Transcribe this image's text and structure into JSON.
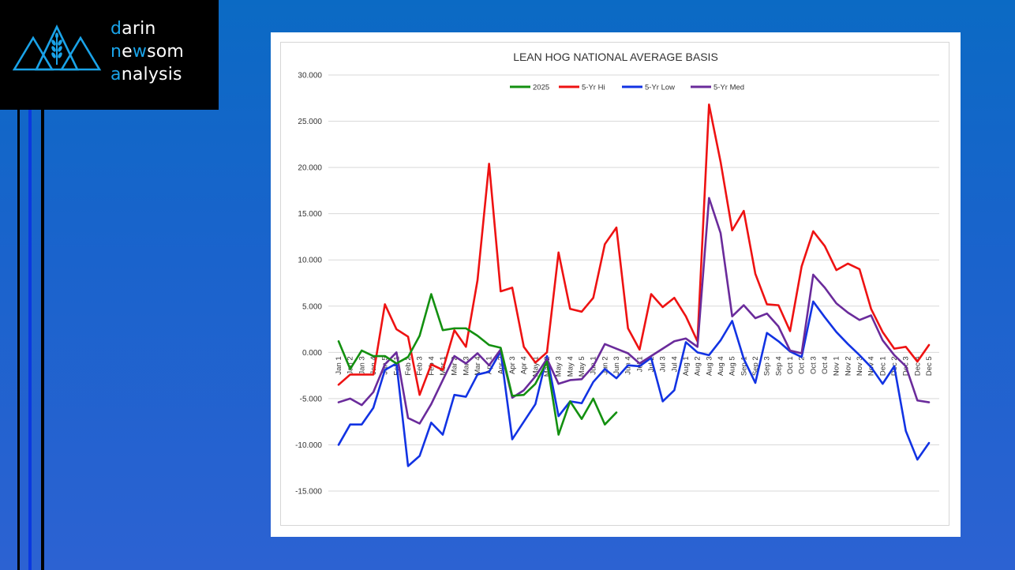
{
  "logo": {
    "line1_first": "d",
    "line1_rest": "arin",
    "line2_a": "n",
    "line2_b": "e",
    "line2_c": "w",
    "line2_d": "som",
    "line3_first": "a",
    "line3_rest": "nalysis"
  },
  "colors": {
    "background": "#1a63cc",
    "logo_accent": "#1aa3e8"
  },
  "chart_data": {
    "type": "line",
    "title": "LEAN HOG NATIONAL AVERAGE BASIS",
    "xlabel": "",
    "ylabel": "",
    "ylim": [
      -15,
      30
    ],
    "y_ticks": [
      "30.000",
      "25.000",
      "20.000",
      "15.000",
      "10.000",
      "5.000",
      "0.000",
      "-5.000",
      "-10.000",
      "-15.000"
    ],
    "y_tick_values": [
      30,
      25,
      20,
      15,
      10,
      5,
      0,
      -5,
      -10,
      -15
    ],
    "grid": true,
    "legend_position": "top",
    "categories": [
      "Jan 1",
      "Jan 2",
      "Jan 3",
      "Jan 4",
      "Jan 5",
      "Feb 1",
      "Feb 2",
      "Feb 3",
      "Feb 4",
      "Mar 1",
      "Mar 2",
      "Mar 3",
      "Mar 4",
      "Apr 1",
      "Apr 2",
      "Apr 3",
      "Apr 4",
      "May 1",
      "May 2",
      "May 3",
      "May 4",
      "May 5",
      "Jun 1",
      "Jun 2",
      "Jun 3",
      "Jun 4",
      "Jul 1",
      "Jul 2",
      "Jul 3",
      "Jul 4",
      "Aug 1",
      "Aug 2",
      "Aug 3",
      "Aug 4",
      "Aug 5",
      "Sep 1",
      "Sep 2",
      "Sep 3",
      "Sep 4",
      "Oct 1",
      "Oct 2",
      "Oct 3",
      "Oct 4",
      "Nov 1",
      "Nov 2",
      "Nov 3",
      "Nov 4",
      "Dec 1",
      "Dec 2",
      "Dec 3",
      "Dec 4",
      "Dec 5"
    ],
    "series": [
      {
        "name": "2025",
        "color": "#139010",
        "values": [
          1.2,
          -1.8,
          0.2,
          -0.4,
          -0.4,
          -1.2,
          -0.5,
          1.8,
          6.3,
          2.4,
          2.6,
          2.6,
          1.8,
          0.8,
          0.5,
          -4.7,
          -4.6,
          -3.4,
          -1.0,
          -8.9,
          -5.3,
          -7.2,
          -5.0,
          -7.8,
          -6.5,
          null,
          null,
          null,
          null,
          null,
          null,
          null,
          null,
          null,
          null,
          null,
          null,
          null,
          null,
          null,
          null,
          null,
          null,
          null,
          null,
          null,
          null,
          null,
          null,
          null,
          null,
          null
        ]
      },
      {
        "name": "5-Yr Hi",
        "color": "#ee1212",
        "values": [
          -3.5,
          -2.4,
          -2.4,
          -2.4,
          5.2,
          2.5,
          1.7,
          -4.6,
          -1.3,
          -1.9,
          2.4,
          0.6,
          7.8,
          20.4,
          6.6,
          7.0,
          0.6,
          -1.1,
          0.0,
          10.8,
          4.7,
          4.4,
          5.9,
          11.7,
          13.5,
          2.6,
          0.3,
          6.3,
          4.9,
          5.9,
          3.9,
          1.2,
          26.8,
          20.6,
          13.2,
          15.3,
          8.5,
          5.2,
          5.1,
          2.3,
          9.3,
          13.1,
          11.5,
          8.9,
          9.6,
          9.0,
          4.7,
          2.2,
          0.4,
          0.6,
          -1.0,
          0.8
        ]
      },
      {
        "name": "5-Yr Low",
        "color": "#1233e3",
        "values": [
          -10.0,
          -7.8,
          -7.8,
          -6.0,
          -1.9,
          -1.2,
          -12.3,
          -11.2,
          -7.6,
          -8.9,
          -4.6,
          -4.8,
          -2.4,
          -2.1,
          0.1,
          -9.4,
          -7.5,
          -5.6,
          -0.4,
          -6.9,
          -5.3,
          -5.5,
          -3.2,
          -1.8,
          -2.8,
          -1.4,
          -1.5,
          -0.6,
          -5.3,
          -4.1,
          1.1,
          0.0,
          -0.3,
          1.3,
          3.4,
          -0.7,
          -3.3,
          2.1,
          1.2,
          0.1,
          -0.5,
          5.5,
          3.8,
          2.2,
          0.9,
          -0.3,
          -1.6,
          -3.4,
          -1.5,
          -8.5,
          -11.6,
          -9.8
        ]
      },
      {
        "name": "5-Yr Med",
        "color": "#6a2b9b",
        "values": [
          -5.4,
          -5.0,
          -5.7,
          -4.3,
          -1.3,
          0.0,
          -7.1,
          -7.7,
          -5.6,
          -3.0,
          -0.4,
          -1.2,
          -0.1,
          -1.4,
          0.3,
          -4.9,
          -4.1,
          -2.6,
          -0.7,
          -3.4,
          -3.0,
          -2.9,
          -1.5,
          0.9,
          0.4,
          -0.1,
          -1.2,
          -0.4,
          0.4,
          1.2,
          1.5,
          0.6,
          16.7,
          12.9,
          3.9,
          5.1,
          3.7,
          4.2,
          2.8,
          0.2,
          -0.1,
          8.4,
          7.0,
          5.3,
          4.3,
          3.5,
          4.0,
          1.3,
          -0.3,
          -1.5,
          -5.2,
          -5.4
        ]
      }
    ]
  }
}
